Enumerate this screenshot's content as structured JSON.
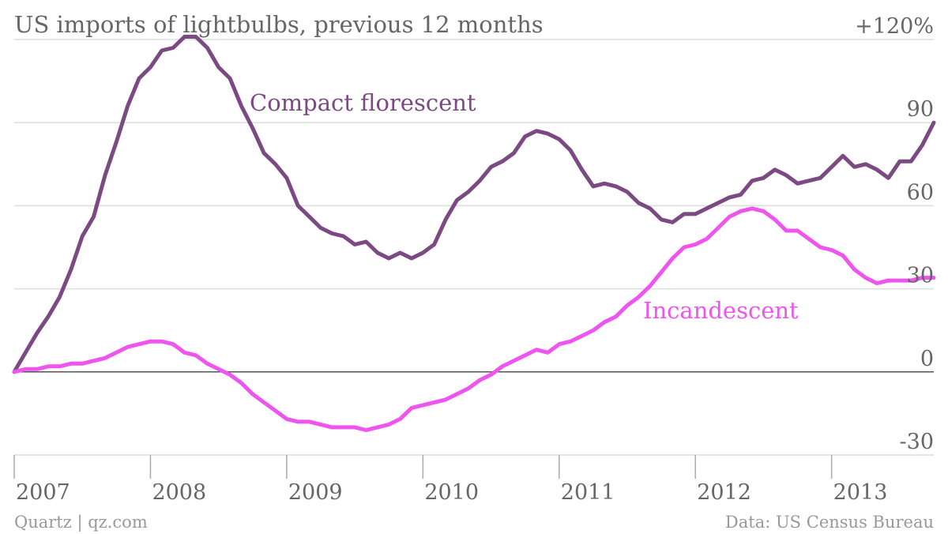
{
  "chart_data": {
    "type": "line",
    "title": "US imports of lightbulbs, previous 12 months",
    "y_tick_labels": [
      "+120%",
      "90",
      "60",
      "30",
      "0",
      "-30"
    ],
    "y_ticks": [
      120,
      90,
      60,
      30,
      0,
      -30
    ],
    "ylim": [
      -30,
      120
    ],
    "x_tick_labels": [
      "2007",
      "2008",
      "2009",
      "2010",
      "2011",
      "2012",
      "2013"
    ],
    "x_ticks": [
      2007,
      2008,
      2009,
      2010,
      2011,
      2012,
      2013
    ],
    "xlim": [
      2007.0,
      2013.75
    ],
    "grid": true,
    "series": [
      {
        "name": "Compact florescent",
        "color": "#7b4a82",
        "x": [
          2007.0,
          2007.083,
          2007.167,
          2007.25,
          2007.333,
          2007.417,
          2007.5,
          2007.583,
          2007.667,
          2007.75,
          2007.833,
          2007.917,
          2008.0,
          2008.083,
          2008.167,
          2008.25,
          2008.333,
          2008.417,
          2008.5,
          2008.583,
          2008.667,
          2008.75,
          2008.833,
          2008.917,
          2009.0,
          2009.083,
          2009.167,
          2009.25,
          2009.333,
          2009.417,
          2009.5,
          2009.583,
          2009.667,
          2009.75,
          2009.833,
          2009.917,
          2010.0,
          2010.083,
          2010.167,
          2010.25,
          2010.333,
          2010.417,
          2010.5,
          2010.583,
          2010.667,
          2010.75,
          2010.833,
          2010.917,
          2011.0,
          2011.083,
          2011.167,
          2011.25,
          2011.333,
          2011.417,
          2011.5,
          2011.583,
          2011.667,
          2011.75,
          2011.833,
          2011.917,
          2012.0,
          2012.083,
          2012.167,
          2012.25,
          2012.333,
          2012.417,
          2012.5,
          2012.583,
          2012.667,
          2012.75,
          2012.833,
          2012.917,
          2013.0,
          2013.083,
          2013.167,
          2013.25,
          2013.333,
          2013.417,
          2013.5,
          2013.583,
          2013.667,
          2013.75
        ],
        "values": [
          0,
          7,
          14,
          20,
          27,
          37,
          49,
          56,
          71,
          83,
          96,
          106,
          110,
          116,
          117,
          121,
          121,
          117,
          110,
          106,
          96,
          88,
          79,
          75,
          70,
          60,
          56,
          52,
          50,
          49,
          46,
          47,
          43,
          41,
          43,
          41,
          43,
          46,
          55,
          62,
          65,
          69,
          74,
          76,
          79,
          85,
          87,
          86,
          84,
          80,
          73,
          67,
          68,
          67,
          65,
          61,
          59,
          55,
          54,
          57,
          57,
          59,
          61,
          63,
          64,
          69,
          70,
          73,
          71,
          68,
          69,
          70,
          74,
          78,
          74,
          75,
          73,
          70,
          76,
          76,
          82,
          90
        ]
      },
      {
        "name": "Incandescent",
        "color": "#ee55ee",
        "x": [
          2007.0,
          2007.083,
          2007.167,
          2007.25,
          2007.333,
          2007.417,
          2007.5,
          2007.583,
          2007.667,
          2007.75,
          2007.833,
          2007.917,
          2008.0,
          2008.083,
          2008.167,
          2008.25,
          2008.333,
          2008.417,
          2008.5,
          2008.583,
          2008.667,
          2008.75,
          2008.833,
          2008.917,
          2009.0,
          2009.083,
          2009.167,
          2009.25,
          2009.333,
          2009.417,
          2009.5,
          2009.583,
          2009.667,
          2009.75,
          2009.833,
          2009.917,
          2010.0,
          2010.083,
          2010.167,
          2010.25,
          2010.333,
          2010.417,
          2010.5,
          2010.583,
          2010.667,
          2010.75,
          2010.833,
          2010.917,
          2011.0,
          2011.083,
          2011.167,
          2011.25,
          2011.333,
          2011.417,
          2011.5,
          2011.583,
          2011.667,
          2011.75,
          2011.833,
          2011.917,
          2012.0,
          2012.083,
          2012.167,
          2012.25,
          2012.333,
          2012.417,
          2012.5,
          2012.583,
          2012.667,
          2012.75,
          2012.833,
          2012.917,
          2013.0,
          2013.083,
          2013.167,
          2013.25,
          2013.333,
          2013.417,
          2013.5,
          2013.583,
          2013.667,
          2013.75
        ],
        "values": [
          0,
          1,
          1,
          2,
          2,
          3,
          3,
          4,
          5,
          7,
          9,
          10,
          11,
          11,
          10,
          7,
          6,
          3,
          1,
          -1,
          -4,
          -8,
          -11,
          -14,
          -17,
          -18,
          -18,
          -19,
          -20,
          -20,
          -20,
          -21,
          -20,
          -19,
          -17,
          -13,
          -12,
          -11,
          -10,
          -8,
          -6,
          -3,
          -1,
          2,
          4,
          6,
          8,
          7,
          10,
          11,
          13,
          15,
          18,
          20,
          24,
          27,
          31,
          36,
          41,
          45,
          46,
          48,
          52,
          56,
          58,
          59,
          58,
          55,
          51,
          51,
          48,
          45,
          44,
          42,
          37,
          34,
          32,
          33,
          33,
          33,
          34,
          34
        ]
      }
    ],
    "labels": {
      "compact": "Compact florescent",
      "incandescent": "Incandescent"
    },
    "footer_left": "Quartz | qz.com",
    "footer_right": "Data: US Census Bureau"
  }
}
